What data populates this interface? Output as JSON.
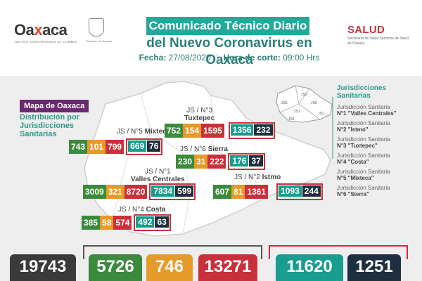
{
  "header": {
    "logo_text_a": "Oa",
    "logo_text_x": "x",
    "logo_text_b": "aca",
    "logo_tagline": "JUNTOS CONSTRUIMOS EL CAMBIO",
    "seal_caption": "Gobierno de Oaxaca",
    "title_line1": "Comunicado Técnico Diario",
    "title_line2": "del Nuevo Coronavirus en Oaxaca",
    "fecha_label": "Fecha:",
    "fecha_value": "27/08/2020",
    "separator": "|",
    "hora_label": "Hora de corte:",
    "hora_value": "09:00 Hrs",
    "salud_title": "SALUD",
    "salud_sub": "Secretaría de Salud Servicios de Salud de Oaxaca"
  },
  "map": {
    "badge": "Mapa de Oaxaca",
    "subtitle": "Distribución por Jurisdicciones Sanitarias",
    "mini_labels": [
      "JS1",
      "JS2",
      "JS3",
      "JS4",
      "JS5",
      "JS6"
    ],
    "regions": [
      {
        "label_a": "JS / N°5",
        "label_b": "Mixteca",
        "values": [
          "743",
          "101",
          "799"
        ],
        "outlined": [
          "669",
          "76"
        ]
      },
      {
        "label_a": "JS / N°3",
        "label_b": "Tuxtepec",
        "values": [
          "752",
          "154",
          "1595"
        ],
        "outlined": [
          "1356",
          "232"
        ]
      },
      {
        "label_a": "JS / N°6",
        "label_b": "Sierra",
        "values": [
          "230",
          "31",
          "222"
        ],
        "outlined": [
          "176",
          "37"
        ]
      },
      {
        "label_a": "JS / N°1",
        "label_b": "Valles Centrales",
        "values": [
          "3009",
          "321",
          "8720"
        ],
        "outlined": [
          "7834",
          "599"
        ]
      },
      {
        "label_a": "JS / N°2",
        "label_b": "Istmo",
        "values": [
          "607",
          "81",
          "1361"
        ],
        "outlined": [
          "1093",
          "244"
        ]
      },
      {
        "label_a": "JS / N°4",
        "label_b": "Costa",
        "values": [
          "385",
          "58",
          "574"
        ],
        "outlined": [
          "492",
          "63"
        ]
      }
    ]
  },
  "jurisdicciones": {
    "title": "Jurisdicciones Sanitarias",
    "items": [
      {
        "prefix": "Jurisdicción Sanitaria",
        "name": "N°1 \"Valles Centrales\""
      },
      {
        "prefix": "Jurisdicción Sanitaria",
        "name": "N°2 \"Istmo\""
      },
      {
        "prefix": "Jurisdicción Sanitaria",
        "name": "N°3 \"Tuxtepec\""
      },
      {
        "prefix": "Jurisdicción Sanitaria",
        "name": "N°4 \"Costa\""
      },
      {
        "prefix": "Jurisdicción Sanitaria",
        "name": "N°5 \"Mixteca\""
      },
      {
        "prefix": "Jurisdicción Sanitaria",
        "name": "N°6 \"Sierra\""
      }
    ]
  },
  "totals": [
    "19743",
    "5726",
    "746",
    "13271",
    "11620",
    "1251"
  ],
  "colors": {
    "green": "#3b8a3d",
    "orange": "#e69a2a",
    "red": "#c8313b",
    "teal": "#1a9c8e",
    "navy": "#1f2f3f",
    "purple": "#6b2a6e",
    "grey": "#3a3a3a"
  }
}
